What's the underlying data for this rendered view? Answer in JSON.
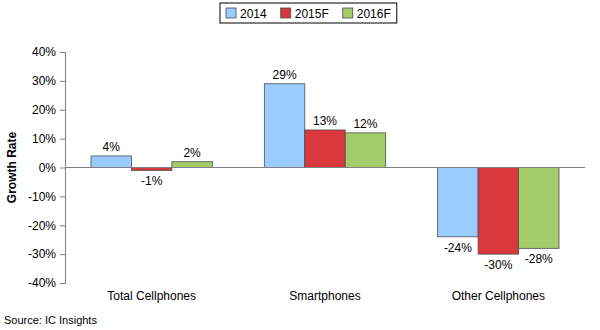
{
  "chart_data": {
    "type": "bar",
    "y_label": "Growth Rate",
    "annotations": [
      "Source: IC Insights"
    ],
    "categories": [
      "Total Cellphones",
      "Smartphones",
      "Other Cellphones"
    ],
    "series": [
      {
        "name": "2014",
        "color": "#99ccff",
        "values": [
          4,
          29,
          -24
        ],
        "value_labels": [
          "4%",
          "29%",
          "-24%"
        ]
      },
      {
        "name": "2015F",
        "color": "#d9383d",
        "values": [
          -1,
          13,
          -30
        ],
        "value_labels": [
          "-1%",
          "13%",
          "-30%"
        ]
      },
      {
        "name": "2016F",
        "color": "#a5cc6b",
        "values": [
          2,
          12,
          -28
        ],
        "value_labels": [
          "2%",
          "12%",
          "-28%"
        ]
      }
    ],
    "ylim": [
      -40,
      40
    ],
    "yticks": [
      {
        "value": -40,
        "label": "-40%"
      },
      {
        "value": -30,
        "label": "-30%"
      },
      {
        "value": -20,
        "label": "-20%"
      },
      {
        "value": -10,
        "label": "-10%"
      },
      {
        "value": 0,
        "label": "0%"
      },
      {
        "value": 10,
        "label": "10%"
      },
      {
        "value": 20,
        "label": "20%"
      },
      {
        "value": 30,
        "label": "30%"
      },
      {
        "value": 40,
        "label": "40%"
      }
    ],
    "grid": false,
    "legend": "top",
    "data_labels": true
  }
}
